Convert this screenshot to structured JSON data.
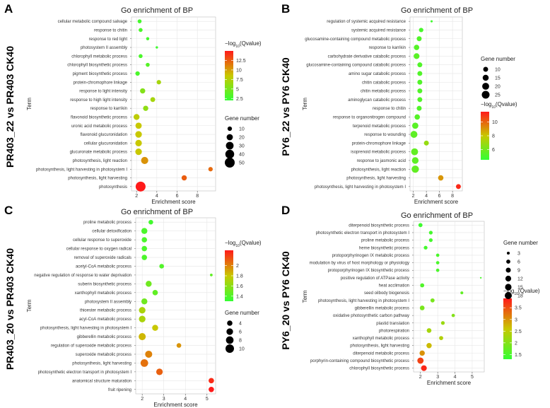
{
  "chart_data": [
    {
      "panel": "A",
      "type": "scatter",
      "title": "Go enrichment of BP",
      "comparison": "PR403_22 vs PR403 CK40",
      "ylabel": "Term",
      "xlabel": "Enrichment score",
      "xlim": [
        1.5,
        9.8
      ],
      "xticks": [
        2,
        4,
        6,
        8
      ],
      "color_legend": {
        "title": "-log10(Qvalue)",
        "min": 2.0,
        "max": 15.0,
        "ticks": [
          12.5,
          10.0,
          7.5,
          5.0,
          2.5
        ]
      },
      "size_legend": {
        "title": "Gene number",
        "values": [
          10,
          20,
          30,
          40,
          50
        ],
        "max": 50
      },
      "terms": [
        {
          "term": "cellular metabolic compound salvage",
          "x": 2.3,
          "size": 8,
          "q": 2.8
        },
        {
          "term": "response to chitin",
          "x": 2.4,
          "size": 8,
          "q": 3.0
        },
        {
          "term": "response to red light",
          "x": 3.1,
          "size": 5,
          "q": 2.7
        },
        {
          "term": "photosystem II assembly",
          "x": 4.0,
          "size": 3,
          "q": 2.5
        },
        {
          "term": "chlorophyll metabolic process",
          "x": 2.4,
          "size": 8,
          "q": 3.0
        },
        {
          "term": "chlorophyll biosynthetic process",
          "x": 3.1,
          "size": 8,
          "q": 3.5
        },
        {
          "term": "pigment biosynthetic process",
          "x": 2.1,
          "size": 10,
          "q": 3.0
        },
        {
          "term": "protein-chromophore linkage",
          "x": 4.2,
          "size": 10,
          "q": 7.0
        },
        {
          "term": "response to light intensity",
          "x": 2.6,
          "size": 14,
          "q": 5.5
        },
        {
          "term": "response to high light intensity",
          "x": 3.6,
          "size": 12,
          "q": 7.0
        },
        {
          "term": "response to karrikin",
          "x": 2.9,
          "size": 14,
          "q": 6.0
        },
        {
          "term": "flavonoid biosynthetic process",
          "x": 2.0,
          "size": 18,
          "q": 8.0
        },
        {
          "term": "uronic acid metabolic process",
          "x": 2.2,
          "size": 20,
          "q": 8.5
        },
        {
          "term": "flavonoid glucuronidation",
          "x": 2.2,
          "size": 22,
          "q": 8.5
        },
        {
          "term": "cellular glucuronidation",
          "x": 2.2,
          "size": 22,
          "q": 8.5
        },
        {
          "term": "glucuronate metabolic process",
          "x": 2.2,
          "size": 22,
          "q": 8.5
        },
        {
          "term": "photosynthesis, light reaction",
          "x": 2.8,
          "size": 26,
          "q": 10.5
        },
        {
          "term": "photosynthesis, light harvesting in photosystem I",
          "x": 9.3,
          "size": 10,
          "q": 12.0
        },
        {
          "term": "photosynthesis, light harvesting",
          "x": 6.7,
          "size": 14,
          "q": 12.5
        },
        {
          "term": "photosynthesis",
          "x": 2.4,
          "size": 50,
          "q": 15.0
        }
      ]
    },
    {
      "panel": "B",
      "type": "scatter",
      "title": "Go enrichment of BP",
      "comparison": "PY6_22 vs PY6 CK40",
      "ylabel": "Term",
      "xlabel": "Enrichment score",
      "xlim": [
        1.5,
        9.5
      ],
      "xticks": [
        2,
        4,
        6,
        8
      ],
      "color_legend": {
        "title": "-log10(Qvalue)",
        "min": 4.5,
        "max": 11.5,
        "ticks": [
          10,
          8,
          6
        ]
      },
      "size_legend": {
        "title": "Gene number",
        "values": [
          10,
          15,
          20,
          25
        ],
        "max": 25
      },
      "terms": [
        {
          "term": "regulation of systemic acquired resistance",
          "x": 4.8,
          "size": 2,
          "q": 4.8
        },
        {
          "term": "systemic acquired resistance",
          "x": 3.2,
          "size": 8,
          "q": 5.0
        },
        {
          "term": "glucosamine-containing compound metabolic process",
          "x": 2.9,
          "size": 10,
          "q": 5.2
        },
        {
          "term": "response to karrikin",
          "x": 2.5,
          "size": 12,
          "q": 5.3
        },
        {
          "term": "carbohydrate derivative catabolic process",
          "x": 2.5,
          "size": 14,
          "q": 5.4
        },
        {
          "term": "glucosamine-containing compound catabolic process",
          "x": 3.0,
          "size": 10,
          "q": 5.2
        },
        {
          "term": "amino sugar catabolic process",
          "x": 3.0,
          "size": 10,
          "q": 5.2
        },
        {
          "term": "chitin catabolic process",
          "x": 3.0,
          "size": 10,
          "q": 5.2
        },
        {
          "term": "chitin metabolic process",
          "x": 3.0,
          "size": 10,
          "q": 5.2
        },
        {
          "term": "aminoglycan catabolic process",
          "x": 3.0,
          "size": 10,
          "q": 5.2
        },
        {
          "term": "response to chitin",
          "x": 2.9,
          "size": 10,
          "q": 5.2
        },
        {
          "term": "response to organonitrogen compound",
          "x": 2.6,
          "size": 12,
          "q": 5.3
        },
        {
          "term": "terpenoid metabolic process",
          "x": 2.3,
          "size": 16,
          "q": 5.4
        },
        {
          "term": "response to wounding",
          "x": 2.1,
          "size": 20,
          "q": 5.5
        },
        {
          "term": "protein-chromophore linkage",
          "x": 4.0,
          "size": 10,
          "q": 6.8
        },
        {
          "term": "isoprenoid metabolic process",
          "x": 2.2,
          "size": 20,
          "q": 5.6
        },
        {
          "term": "response to jasmonic acid",
          "x": 2.3,
          "size": 18,
          "q": 5.5
        },
        {
          "term": "photosynthesis, light reaction",
          "x": 2.3,
          "size": 22,
          "q": 5.6
        },
        {
          "term": "photosynthesis, light harvesting",
          "x": 6.2,
          "size": 12,
          "q": 9.0
        },
        {
          "term": "photosynthesis, light harvesting in photosystem I",
          "x": 8.9,
          "size": 10,
          "q": 11.2
        }
      ]
    },
    {
      "panel": "C",
      "type": "scatter",
      "title": "Go enrichment of BP",
      "comparison": "PR403_20 vs PR403 CK40",
      "ylabel": "Term",
      "xlabel": "Enrichment score",
      "xlim": [
        1.7,
        5.4
      ],
      "xticks": [
        2,
        3,
        4,
        5
      ],
      "color_legend": {
        "title": "-log10(Qvalue)",
        "min": 1.3,
        "max": 2.3,
        "ticks": [
          2.0,
          1.8,
          1.6,
          1.4
        ]
      },
      "size_legend": {
        "title": "Gene number",
        "values": [
          4,
          6,
          8,
          10
        ],
        "max": 10
      },
      "terms": [
        {
          "term": "proline metabolic process",
          "x": 2.4,
          "size": 3,
          "q": 1.35
        },
        {
          "term": "cellular detoxification",
          "x": 2.1,
          "size": 5,
          "q": 1.38
        },
        {
          "term": "cellular response to superoxide",
          "x": 2.1,
          "size": 4,
          "q": 1.38
        },
        {
          "term": "cellular response to oxygen radical",
          "x": 2.1,
          "size": 4,
          "q": 1.38
        },
        {
          "term": "removal of superoxide radicals",
          "x": 2.1,
          "size": 4,
          "q": 1.38
        },
        {
          "term": "acetyl-CoA metabolic process",
          "x": 2.9,
          "size": 3,
          "q": 1.4
        },
        {
          "term": "negative regulation of response to water deprivation",
          "x": 5.2,
          "size": 1,
          "q": 1.45
        },
        {
          "term": "suberin biosynthetic process",
          "x": 2.3,
          "size": 5,
          "q": 1.5
        },
        {
          "term": "xanthophyll metabolic process",
          "x": 2.6,
          "size": 4,
          "q": 1.45
        },
        {
          "term": "photosystem II assembly",
          "x": 2.1,
          "size": 5,
          "q": 1.5
        },
        {
          "term": "thioester metabolic process",
          "x": 2.0,
          "size": 6,
          "q": 1.7
        },
        {
          "term": "acyl-CoA metabolic process",
          "x": 2.0,
          "size": 6,
          "q": 1.7
        },
        {
          "term": "photosynthesis, light harvesting in photosystem I",
          "x": 2.6,
          "size": 5,
          "q": 1.8
        },
        {
          "term": "gibberellin metabolic process",
          "x": 2.0,
          "size": 7,
          "q": 1.85
        },
        {
          "term": "regulation of superoxide metabolic process",
          "x": 3.7,
          "size": 3,
          "q": 1.95
        },
        {
          "term": "superoxide metabolic process",
          "x": 2.3,
          "size": 7,
          "q": 2.0
        },
        {
          "term": "photosynthesis, light harvesting",
          "x": 2.1,
          "size": 8,
          "q": 2.05
        },
        {
          "term": "photosynthetic electron transport in photosystem I",
          "x": 2.8,
          "size": 6,
          "q": 2.1
        },
        {
          "term": "anatomical structure maturation",
          "x": 5.2,
          "size": 4,
          "q": 2.25
        },
        {
          "term": "fruit ripening",
          "x": 5.2,
          "size": 4,
          "q": 2.3
        }
      ]
    },
    {
      "panel": "D",
      "type": "scatter",
      "title": "Go enrichment of BP",
      "comparison": "PY6_20 vs PY6 CK40",
      "ylabel": "Term",
      "xlabel": "Enrichment score",
      "xlim": [
        1.6,
        5.7
      ],
      "xticks": [
        2,
        3,
        4,
        5
      ],
      "color_legend": {
        "title": "-log10(Qvalue)",
        "min": 1.3,
        "max": 3.9,
        "ticks": [
          3.5,
          3.0,
          2.5,
          2.0,
          1.5
        ]
      },
      "size_legend": {
        "title": "Gene number",
        "values": [
          3,
          6,
          9,
          12,
          15,
          18
        ],
        "max": 18
      },
      "terms": [
        {
          "term": "diterpenoid biosynthetic process",
          "x": 2.0,
          "size": 6,
          "q": 1.4
        },
        {
          "term": "photosynthetic electron transport in photosystem I",
          "x": 2.6,
          "size": 5,
          "q": 1.45
        },
        {
          "term": "proline metabolic process",
          "x": 2.6,
          "size": 5,
          "q": 1.45
        },
        {
          "term": "heme biosynthetic process",
          "x": 2.3,
          "size": 5,
          "q": 1.45
        },
        {
          "term": "protoporphyrinogen IX metabolic process",
          "x": 3.0,
          "size": 4,
          "q": 1.5
        },
        {
          "term": "modulation by virus of host morphology or physiology",
          "x": 3.0,
          "size": 4,
          "q": 1.5
        },
        {
          "term": "protoporphyrinogen IX biosynthetic process",
          "x": 3.0,
          "size": 4,
          "q": 1.5
        },
        {
          "term": "positive regulation of ATPase activity",
          "x": 5.5,
          "size": 1,
          "q": 1.5
        },
        {
          "term": "heat acclimation",
          "x": 2.1,
          "size": 6,
          "q": 1.55
        },
        {
          "term": "seed oilbody biogenesis",
          "x": 4.4,
          "size": 3,
          "q": 1.7
        },
        {
          "term": "photosynthesis, light harvesting in photosystem I",
          "x": 2.7,
          "size": 6,
          "q": 1.9
        },
        {
          "term": "gibberellin metabolic process",
          "x": 2.1,
          "size": 8,
          "q": 1.9
        },
        {
          "term": "oxidative photosynthetic carbon pathway",
          "x": 3.9,
          "size": 4,
          "q": 2.0
        },
        {
          "term": "plastid translation",
          "x": 3.3,
          "size": 5,
          "q": 2.2
        },
        {
          "term": "photorespiration",
          "x": 2.5,
          "size": 8,
          "q": 2.3
        },
        {
          "term": "xanthophyll metabolic process",
          "x": 3.2,
          "size": 6,
          "q": 2.4
        },
        {
          "term": "photosynthesis, light harvesting",
          "x": 2.5,
          "size": 10,
          "q": 2.7
        },
        {
          "term": "diterpenoid metabolic process",
          "x": 2.1,
          "size": 10,
          "q": 3.0
        },
        {
          "term": "porphyrin-containing compound biosynthetic process",
          "x": 2.0,
          "size": 14,
          "q": 3.6
        },
        {
          "term": "chlorophyll biosynthetic process",
          "x": 2.2,
          "size": 12,
          "q": 3.8
        }
      ]
    }
  ]
}
